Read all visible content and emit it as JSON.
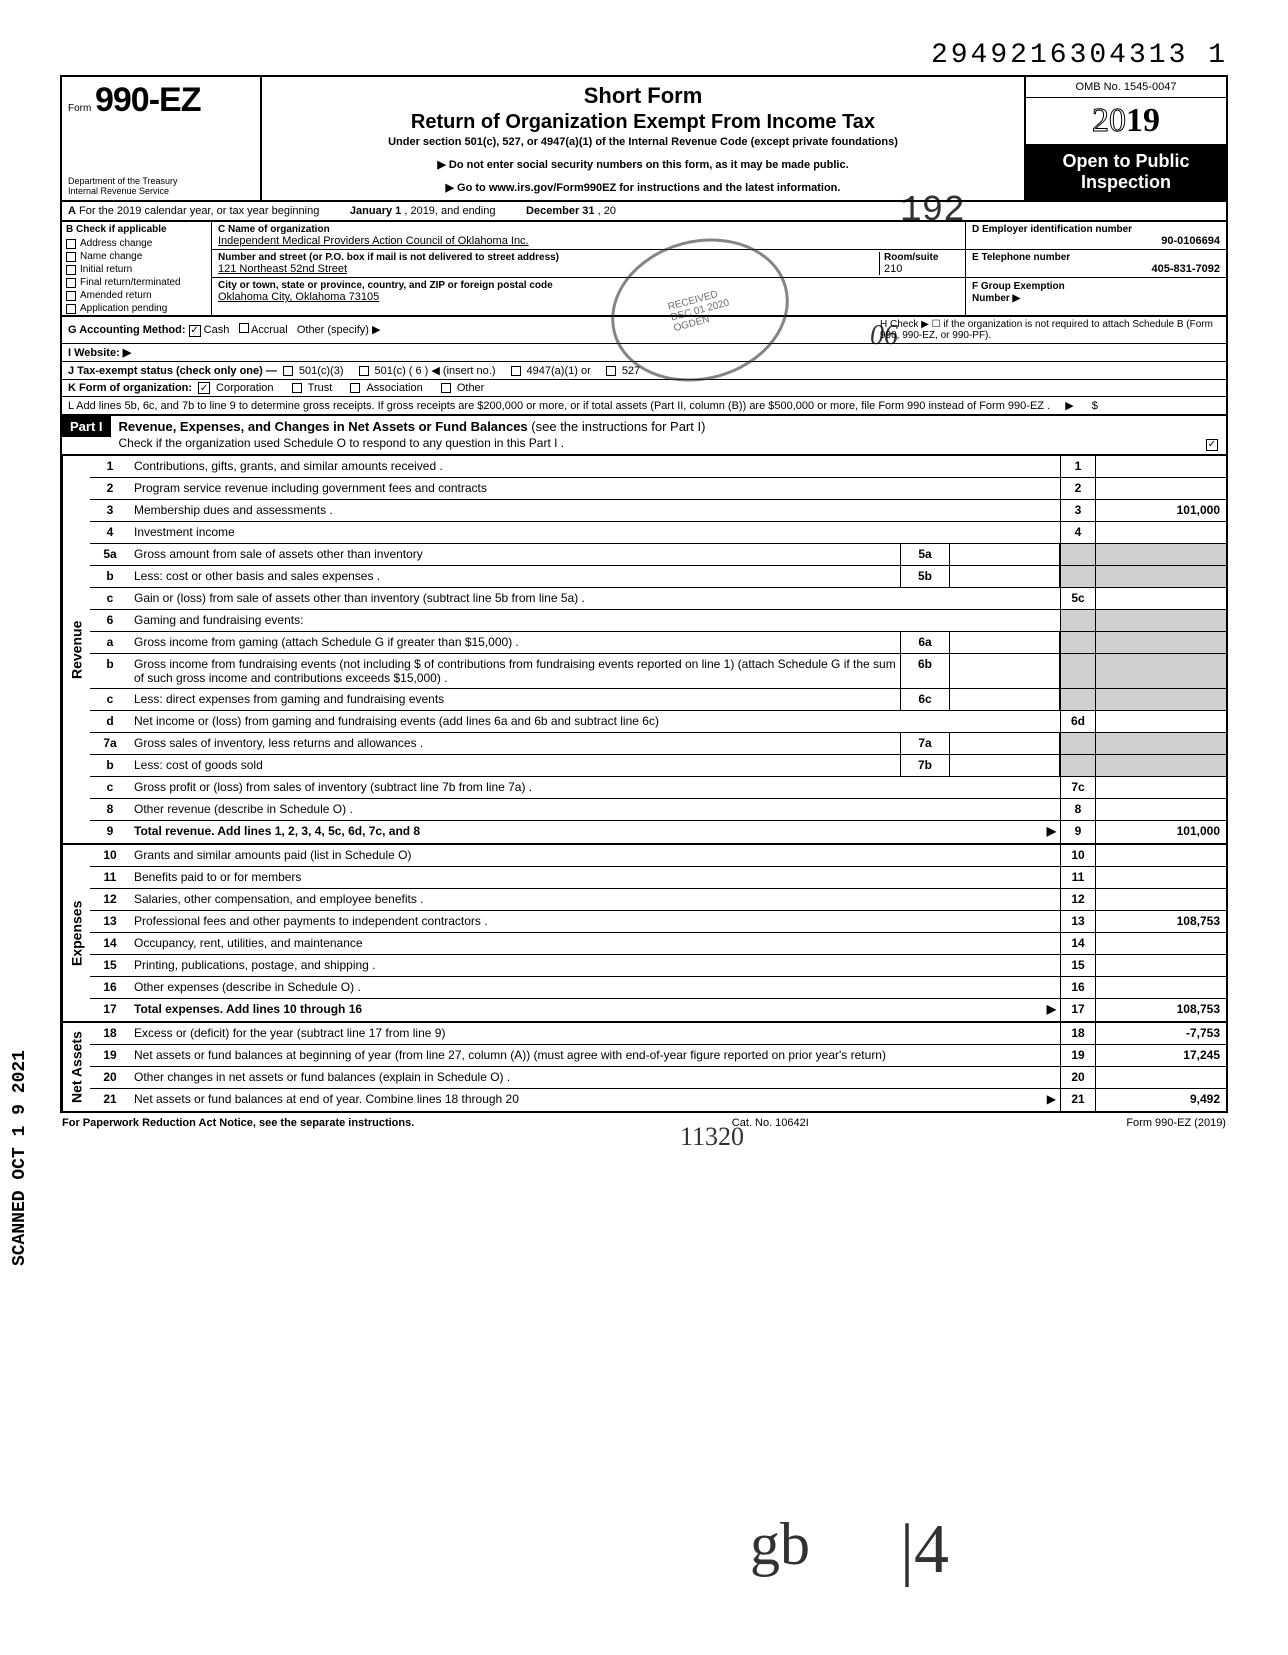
{
  "top_number": "2949216304313  1",
  "header": {
    "form_prefix": "Form",
    "form_number": "990-EZ",
    "dept1": "Department of the Treasury",
    "dept2": "Internal Revenue Service",
    "short_form": "Short Form",
    "title": "Return of Organization Exempt From Income Tax",
    "subtitle": "Under section 501(c), 527, or 4947(a)(1) of the Internal Revenue Code (except private foundations)",
    "note1": "▶ Do not enter social security numbers on this form, as it may be made public.",
    "note2": "▶ Go to www.irs.gov/Form990EZ for instructions and the latest information.",
    "omb": "OMB No. 1545-0047",
    "year": "2019",
    "open_public1": "Open to Public",
    "open_public2": "Inspection"
  },
  "rowA": {
    "prefix": "A",
    "text": "For the 2019 calendar year, or tax year beginning",
    "mid1": "January 1",
    "mid2": ", 2019, and ending",
    "mid3": "December 31",
    "end": ", 20"
  },
  "colB": {
    "header": "B  Check if applicable",
    "items": [
      "Address change",
      "Name change",
      "Initial return",
      "Final return/terminated",
      "Amended return",
      "Application pending"
    ]
  },
  "colC": {
    "label1": "C  Name of organization",
    "val1": "Independent Medical Providers Action Council of Oklahoma Inc.",
    "label2": "Number and street (or P.O. box if mail is not delivered to street address)",
    "val2": "121 Northeast 52nd Street",
    "room_label": "Room/suite",
    "room_val": "210",
    "label3": "City or town, state or province, country, and ZIP or foreign postal code",
    "val3": "Oklahoma City, Oklahoma 73105"
  },
  "colD": {
    "label1": "D Employer identification number",
    "val1": "90-0106694",
    "label2": "E Telephone number",
    "val2": "405-831-7092",
    "label3": "F  Group Exemption",
    "label3b": "Number ▶"
  },
  "rowG": {
    "label": "G  Accounting Method:",
    "opt1": "Cash",
    "opt2": "Accrual",
    "opt3": "Other (specify) ▶"
  },
  "rowH": {
    "text": "H  Check ▶ ☐ if the organization is not required to attach Schedule B (Form 990, 990-EZ, or 990-PF)."
  },
  "rowI": {
    "label": "I   Website: ▶"
  },
  "rowJ": {
    "label": "J  Tax-exempt status (check only one) —",
    "o1": "501(c)(3)",
    "o2": "501(c) (  6  ) ◀ (insert no.)",
    "o3": "4947(a)(1) or",
    "o4": "527"
  },
  "rowK": {
    "label": "K  Form of organization:",
    "o1": "Corporation",
    "o2": "Trust",
    "o3": "Association",
    "o4": "Other"
  },
  "rowL": {
    "text": "L  Add lines 5b, 6c, and 7b to line 9 to determine gross receipts. If gross receipts are $200,000 or more, or if total assets (Part II, column (B)) are $500,000 or more, file Form 990 instead of Form 990-EZ .",
    "arrow": "▶",
    "dollar": "$"
  },
  "part1": {
    "label": "Part I",
    "title": "Revenue, Expenses, and Changes in Net Assets or Fund Balances",
    "title_paren": "(see the instructions for Part I)",
    "sub": "Check if the organization used Schedule O to respond to any question in this Part I ."
  },
  "sections": {
    "revenue": "Revenue",
    "expenses": "Expenses",
    "netassets": "Net Assets"
  },
  "lines": [
    {
      "n": "1",
      "t": "Contributions, gifts, grants, and similar amounts received .",
      "rn": "1",
      "rv": ""
    },
    {
      "n": "2",
      "t": "Program service revenue including government fees and contracts",
      "rn": "2",
      "rv": ""
    },
    {
      "n": "3",
      "t": "Membership dues and assessments .",
      "rn": "3",
      "rv": "101,000"
    },
    {
      "n": "4",
      "t": "Investment income",
      "rn": "4",
      "rv": ""
    },
    {
      "n": "5a",
      "t": "Gross amount from sale of assets other than inventory",
      "mb": "5a",
      "shaded": true
    },
    {
      "n": "b",
      "t": "Less: cost or other basis and sales expenses .",
      "mb": "5b",
      "shaded": true
    },
    {
      "n": "c",
      "t": "Gain or (loss) from sale of assets other than inventory (subtract line 5b from line 5a) .",
      "rn": "5c",
      "rv": ""
    },
    {
      "n": "6",
      "t": "Gaming and fundraising events:",
      "shaded": true,
      "noline": true
    },
    {
      "n": "a",
      "t": "Gross income from gaming (attach Schedule G if greater than $15,000) .",
      "mb": "6a",
      "shaded": true
    },
    {
      "n": "b",
      "t": "Gross income from fundraising events (not including  $                     of contributions from fundraising events reported on line 1) (attach Schedule G if the sum of such gross income and contributions exceeds $15,000) .",
      "mb": "6b",
      "shaded": true
    },
    {
      "n": "c",
      "t": "Less: direct expenses from gaming and fundraising events",
      "mb": "6c",
      "shaded": true
    },
    {
      "n": "d",
      "t": "Net income or (loss) from gaming and fundraising events (add lines 6a and 6b and subtract line 6c)",
      "rn": "6d",
      "rv": ""
    },
    {
      "n": "7a",
      "t": "Gross sales of inventory, less returns and allowances .",
      "mb": "7a",
      "shaded": true
    },
    {
      "n": "b",
      "t": "Less: cost of goods sold",
      "mb": "7b",
      "shaded": true
    },
    {
      "n": "c",
      "t": "Gross profit or (loss) from sales of inventory (subtract line 7b from line 7a) .",
      "rn": "7c",
      "rv": ""
    },
    {
      "n": "8",
      "t": "Other revenue (describe in Schedule O) .",
      "rn": "8",
      "rv": ""
    },
    {
      "n": "9",
      "t": "Total revenue. Add lines 1, 2, 3, 4, 5c, 6d, 7c, and 8",
      "rn": "9",
      "rv": "101,000",
      "bold": true,
      "arrow": true
    }
  ],
  "exp_lines": [
    {
      "n": "10",
      "t": "Grants and similar amounts paid (list in Schedule O)",
      "rn": "10",
      "rv": ""
    },
    {
      "n": "11",
      "t": "Benefits paid to or for members",
      "rn": "11",
      "rv": ""
    },
    {
      "n": "12",
      "t": "Salaries, other compensation, and employee benefits .",
      "rn": "12",
      "rv": ""
    },
    {
      "n": "13",
      "t": "Professional fees and other payments to independent contractors .",
      "rn": "13",
      "rv": "108,753"
    },
    {
      "n": "14",
      "t": "Occupancy, rent, utilities, and maintenance",
      "rn": "14",
      "rv": ""
    },
    {
      "n": "15",
      "t": "Printing, publications, postage, and shipping .",
      "rn": "15",
      "rv": ""
    },
    {
      "n": "16",
      "t": "Other expenses (describe in Schedule O) .",
      "rn": "16",
      "rv": ""
    },
    {
      "n": "17",
      "t": "Total expenses. Add lines 10 through 16",
      "rn": "17",
      "rv": "108,753",
      "bold": true,
      "arrow": true
    }
  ],
  "na_lines": [
    {
      "n": "18",
      "t": "Excess or (deficit) for the year (subtract line 17 from line 9)",
      "rn": "18",
      "rv": "-7,753"
    },
    {
      "n": "19",
      "t": "Net assets or fund balances at beginning of year (from line 27, column (A)) (must agree with end-of-year figure reported on prior year's return)",
      "rn": "19",
      "rv": "17,245"
    },
    {
      "n": "20",
      "t": "Other changes in net assets or fund balances (explain in Schedule O) .",
      "rn": "20",
      "rv": ""
    },
    {
      "n": "21",
      "t": "Net assets or fund balances at end of year. Combine lines 18 through 20",
      "rn": "21",
      "rv": "9,492",
      "arrow": true
    }
  ],
  "footer": {
    "left": "For Paperwork Reduction Act Notice, see the separate instructions.",
    "mid": "Cat. No. 10642I",
    "right": "Form 990-EZ (2019)"
  },
  "scanned": "SCANNED OCT 1 9 2021",
  "handwritten": {
    "h192": "192",
    "h06": "06",
    "h11320": "11320"
  }
}
